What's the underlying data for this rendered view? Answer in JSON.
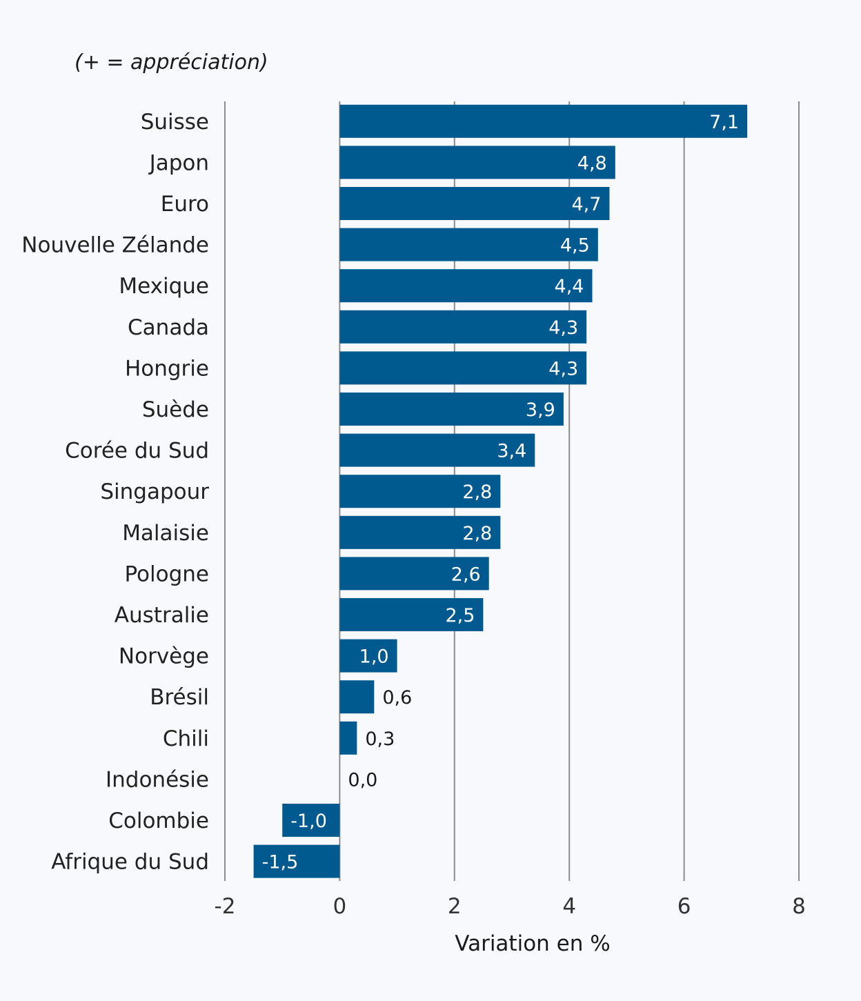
{
  "chart_data": {
    "type": "bar",
    "orientation": "horizontal",
    "annotation": "(+ = appréciation)",
    "xlabel": "Variation en %",
    "xlim": [
      -2,
      8
    ],
    "xticks": [
      -2,
      0,
      2,
      4,
      6,
      8
    ],
    "xtick_labels": [
      "-2",
      "0",
      "2",
      "4",
      "6",
      "8"
    ],
    "grid": true,
    "bar_color": "#005a8f",
    "categories": [
      "Suisse",
      "Japon",
      "Euro",
      "Nouvelle Zélande",
      "Mexique",
      "Canada",
      "Hongrie",
      "Suède",
      "Corée du Sud",
      "Singapour",
      "Malaisie",
      "Pologne",
      "Australie",
      "Norvège",
      "Brésil",
      "Chili",
      "Indonésie",
      "Colombie",
      "Afrique du Sud"
    ],
    "values": [
      7.1,
      4.8,
      4.7,
      4.5,
      4.4,
      4.3,
      4.3,
      3.9,
      3.4,
      2.8,
      2.8,
      2.6,
      2.5,
      1.0,
      0.6,
      0.3,
      0.0,
      -1.0,
      -1.5
    ],
    "value_labels": [
      "7,1",
      "4,8",
      "4,7",
      "4,5",
      "4,4",
      "4,3",
      "4,3",
      "3,9",
      "3,4",
      "2,8",
      "2,8",
      "2,6",
      "2,5",
      "1,0",
      "0,6",
      "0,3",
      "0,0",
      "-1,0",
      "-1,5"
    ]
  }
}
